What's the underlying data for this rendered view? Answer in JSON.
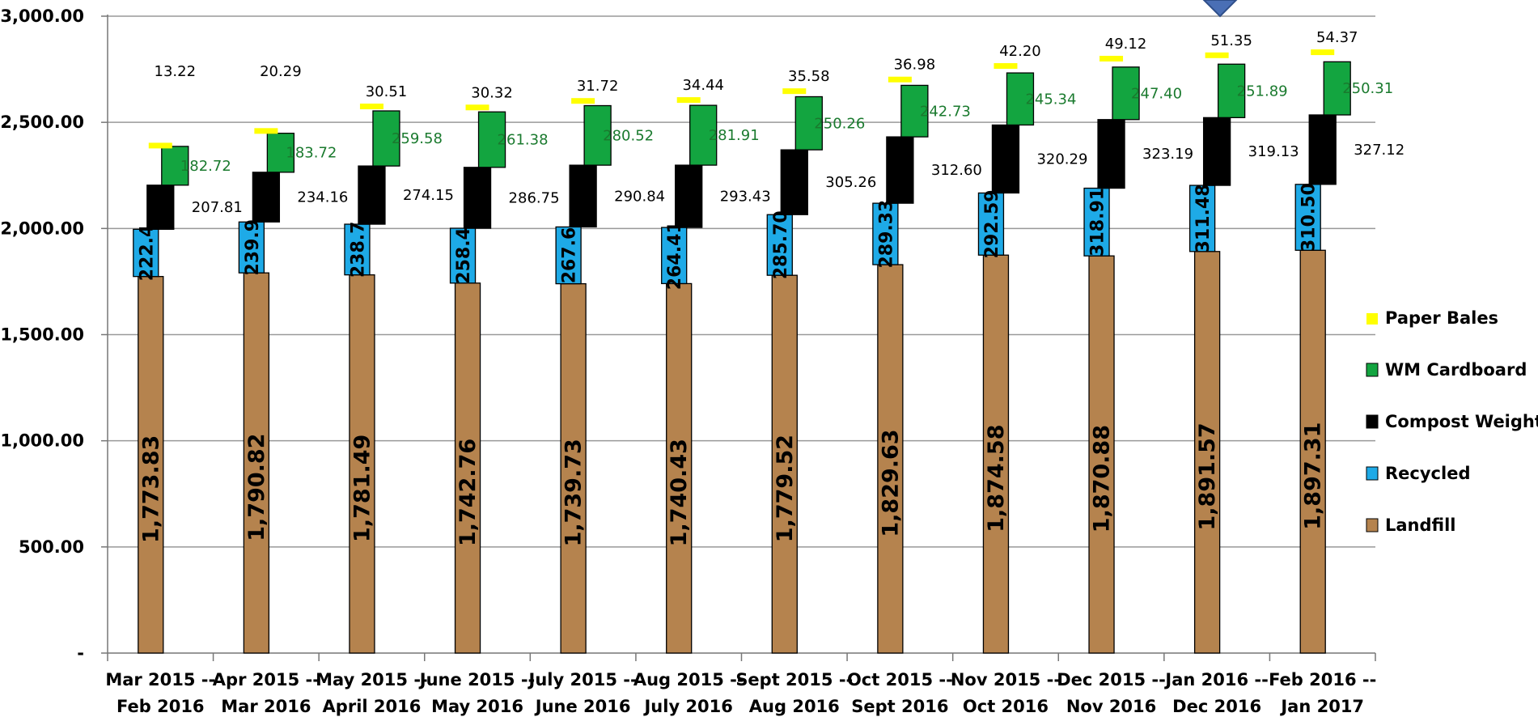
{
  "chart_data": {
    "type": "bar",
    "title": "",
    "xlabel": "",
    "ylabel": "",
    "ylim": [
      0,
      3000
    ],
    "yticks": [
      "-",
      "500.00",
      "1,000.00",
      "1,500.00",
      "2,000.00",
      "2,500.00",
      "3,000.00"
    ],
    "grid": true,
    "legend_position": "right",
    "categories": [
      [
        "Mar 2015 --",
        "Feb 2016"
      ],
      [
        "Apr 2015 --",
        "Mar 2016"
      ],
      [
        "May 2015 --",
        "April 2016"
      ],
      [
        "June 2015 --",
        "May 2016"
      ],
      [
        "July 2015 --",
        "June 2016"
      ],
      [
        "Aug 2015 --",
        "July 2016"
      ],
      [
        "Sept 2015 --",
        "Aug 2016"
      ],
      [
        "Oct 2015 --",
        "Sept 2016"
      ],
      [
        "Nov 2015 --",
        "Oct 2016"
      ],
      [
        "Dec 2015 --",
        "Nov 2016"
      ],
      [
        "Jan 2016 --",
        "Dec 2016"
      ],
      [
        "Feb 2016 --",
        "Jan 2017"
      ]
    ],
    "series": [
      {
        "name": "Landfill",
        "color": "#b5834e",
        "values": [
          1773.83,
          1790.82,
          1781.49,
          1742.76,
          1739.73,
          1740.43,
          1779.52,
          1829.63,
          1874.58,
          1870.88,
          1891.57,
          1897.31
        ],
        "labels": [
          "1,773.83",
          "1,790.82",
          "1,781.49",
          "1,742.76",
          "1,739.73",
          "1,740.43",
          "1,779.52",
          "1,829.63",
          "1,874.58",
          "1,870.88",
          "1,891.57",
          "1,897.31"
        ]
      },
      {
        "name": "Recycled",
        "color": "#1eaae7",
        "values": [
          222.4,
          239.9,
          238.7,
          258.4,
          267.6,
          264.41,
          285.7,
          289.33,
          292.59,
          318.91,
          311.48,
          310.5
        ],
        "labels": [
          "222.4",
          "239.9",
          "238.7",
          "258.4",
          "267.6",
          "264.41",
          "285.70",
          "289.33",
          "292.59",
          "318.91",
          "311.48",
          "310.50"
        ]
      },
      {
        "name": "Compost Weights",
        "color": "#000000",
        "values": [
          207.81,
          234.16,
          274.15,
          286.75,
          290.84,
          293.43,
          305.26,
          312.6,
          320.29,
          323.19,
          319.13,
          327.12
        ],
        "labels": [
          "207.81",
          "234.16",
          "274.15",
          "286.75",
          "290.84",
          "293.43",
          "305.26",
          "312.60",
          "320.29",
          "323.19",
          "319.13",
          "327.12"
        ]
      },
      {
        "name": "WM Cardboard",
        "color": "#13a540",
        "values": [
          182.72,
          183.72,
          259.58,
          261.38,
          280.52,
          281.91,
          250.26,
          242.73,
          245.34,
          247.4,
          251.89,
          250.31
        ],
        "labels": [
          "182.72",
          "183.72",
          "259.58",
          "261.38",
          "280.52",
          "281.91",
          "250.26",
          "242.73",
          "245.34",
          "247.40",
          "251.89",
          "250.31"
        ]
      },
      {
        "name": "Paper Bales",
        "color": "#ffff00",
        "values": [
          13.22,
          20.29,
          30.51,
          30.32,
          31.72,
          34.44,
          35.58,
          36.98,
          42.2,
          49.12,
          51.35,
          54.37
        ],
        "labels": [
          "13.22",
          "20.29",
          "30.51",
          "30.32",
          "31.72",
          "34.44",
          "35.58",
          "36.98",
          "42.20",
          "49.12",
          "51.35",
          "54.37"
        ]
      }
    ]
  }
}
